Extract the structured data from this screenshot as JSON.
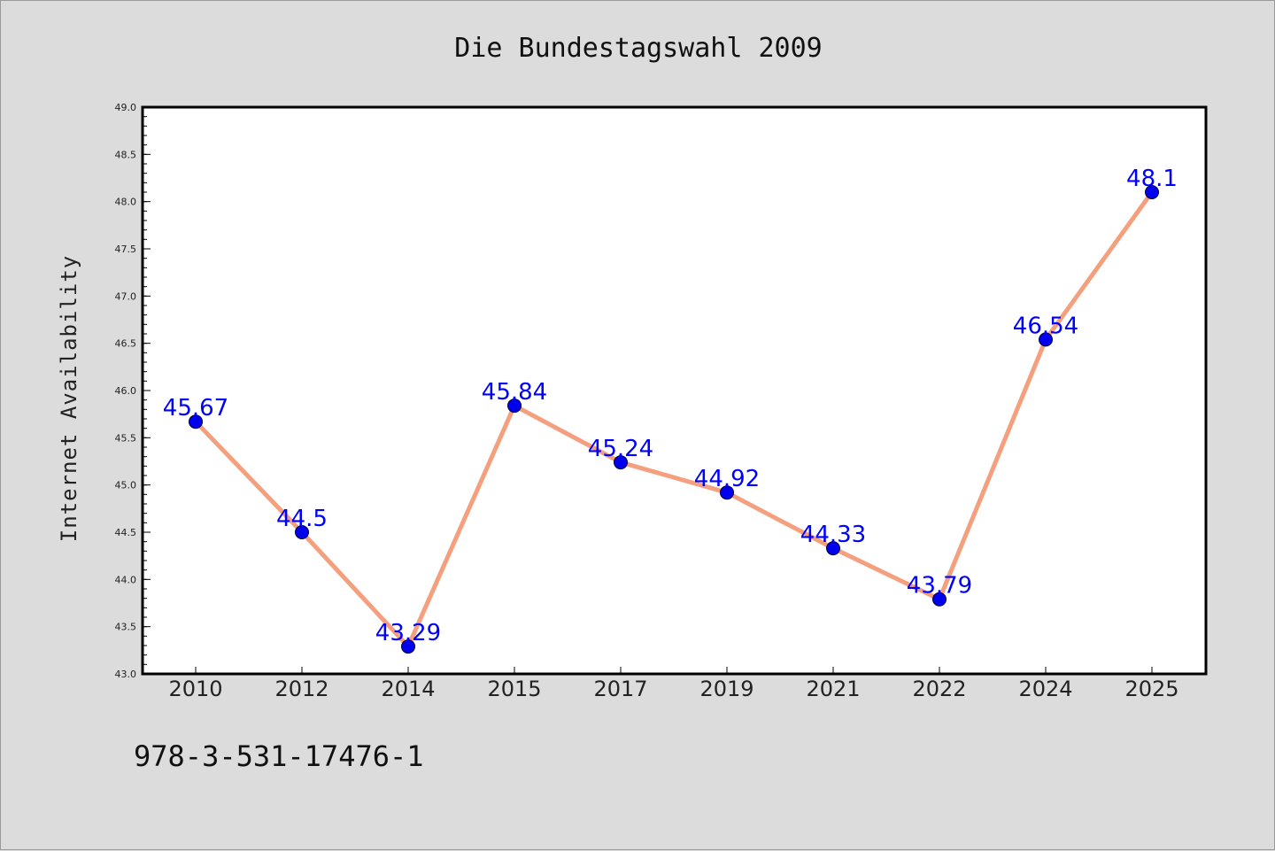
{
  "colors": {
    "line": "#f4a07e",
    "marker": "#0000ee",
    "label": "#0000ff",
    "plot_bg": "#ffffff",
    "page_bg": "#dcdcdc"
  },
  "isbn": "978-3-531-17476-1",
  "chart_data": {
    "type": "line",
    "title": "Die Bundestagswahl 2009",
    "xlabel": "",
    "ylabel": "Internet Availability",
    "categories": [
      "2010",
      "2012",
      "2014",
      "2015",
      "2017",
      "2019",
      "2021",
      "2022",
      "2024",
      "2025"
    ],
    "series": [
      {
        "values": [
          45.67,
          44.5,
          43.29,
          45.84,
          45.24,
          44.92,
          44.33,
          43.79,
          46.54,
          48.1
        ]
      }
    ],
    "data_labels": [
      "45.67",
      "44.5",
      "43.29",
      "45.84",
      "45.24",
      "44.92",
      "44.33",
      "43.79",
      "46.54",
      "48.1"
    ],
    "ylim": [
      43.0,
      49.0
    ],
    "yticks": [
      "43.0",
      "43.5",
      "44.0",
      "44.5",
      "45.0",
      "45.5",
      "46.0",
      "46.5",
      "47.0",
      "47.5",
      "48.0",
      "48.5",
      "49.0"
    ],
    "grid": false,
    "legend": "none"
  }
}
